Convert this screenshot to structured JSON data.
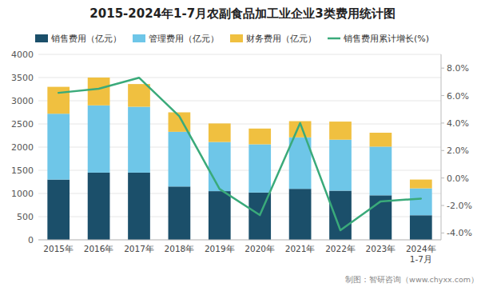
{
  "chart_data": {
    "type": "bar",
    "title": "2015-2024年1-7月农副食品加工业企业3类费用统计图",
    "categories": [
      "2015年",
      "2016年",
      "2017年",
      "2018年",
      "2019年",
      "2020年",
      "2021年",
      "2022年",
      "2023年",
      "2024年\n1-7月"
    ],
    "stacked": true,
    "grid": true,
    "legend": "top-left",
    "series": [
      {
        "name": "销售费用（亿元）",
        "type": "bar",
        "color": "#1b4f6a",
        "values": [
          1300,
          1450,
          1450,
          1150,
          1050,
          1020,
          1100,
          1060,
          960,
          530
        ]
      },
      {
        "name": "管理费用（亿元）",
        "type": "bar",
        "color": "#6ec6e8",
        "values": [
          1420,
          1450,
          1420,
          1180,
          1060,
          1040,
          1110,
          1100,
          1050,
          580
        ]
      },
      {
        "name": "财务费用（亿元）",
        "type": "bar",
        "color": "#f0c040",
        "values": [
          580,
          600,
          490,
          420,
          400,
          340,
          350,
          390,
          300,
          190
        ]
      },
      {
        "name": "销售费用累计增长(%)",
        "type": "line",
        "axis": "y2",
        "color": "#3aaa7a",
        "values": [
          6.2,
          6.5,
          7.3,
          4.5,
          -0.8,
          -2.7,
          4.0,
          -3.8,
          -1.7,
          -1.5
        ]
      }
    ],
    "ylim": [
      0,
      4000
    ],
    "yticks": [
      0,
      500,
      1000,
      1500,
      2000,
      2500,
      3000,
      3500,
      4000
    ],
    "y2lim": [
      -4.5,
      9.0
    ],
    "y2ticks": [
      {
        "value": -4.0,
        "label": "-4.0%"
      },
      {
        "value": -2.0,
        "label": "-2.0%"
      },
      {
        "value": 0.0,
        "label": "0.0%"
      },
      {
        "value": 2.0,
        "label": "2.0%"
      },
      {
        "value": 4.0,
        "label": "4.0%"
      },
      {
        "value": 6.0,
        "label": "6.0%"
      },
      {
        "value": 8.0,
        "label": "8.0%"
      }
    ],
    "annotations": [
      "制图：智研咨询（www.chyxx.com）"
    ]
  }
}
